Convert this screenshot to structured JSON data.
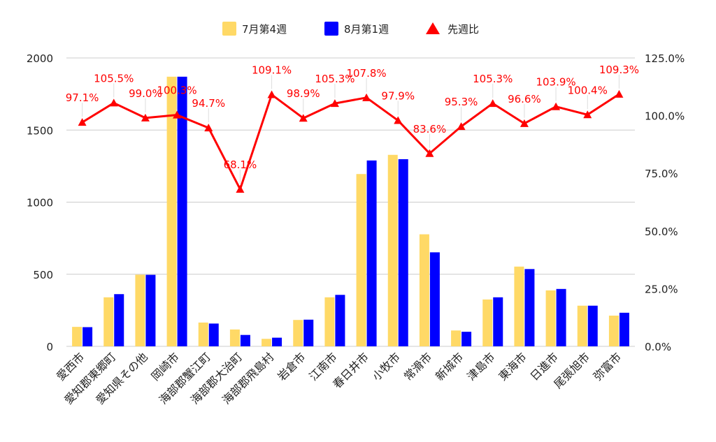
{
  "chart_data": {
    "type": "bar",
    "title": "",
    "categories": [
      "愛西市",
      "愛知郡東郷町",
      "愛知県その他",
      "岡崎市",
      "海部郡蟹江町",
      "海部郡大治町",
      "海部郡飛島村",
      "岩倉市",
      "江南市",
      "春日井市",
      "小牧市",
      "常滑市",
      "新城市",
      "津島市",
      "東海市",
      "日進市",
      "尾張旭市",
      "弥富市"
    ],
    "series": [
      {
        "name": "7月第4週",
        "type": "bar",
        "axis": "left",
        "color": "#ffd966",
        "values": [
          135,
          340,
          497,
          1870,
          165,
          117,
          52,
          183,
          340,
          1195,
          1328,
          777,
          110,
          325,
          553,
          388,
          282,
          213
        ]
      },
      {
        "name": "8月第1週",
        "type": "bar",
        "axis": "left",
        "color": "#0000ff",
        "values": [
          133,
          362,
          496,
          1870,
          158,
          79,
          60,
          185,
          357,
          1289,
          1298,
          652,
          101,
          340,
          536,
          398,
          282,
          233
        ]
      },
      {
        "name": "先週比",
        "type": "line",
        "axis": "right",
        "color": "#ff0000",
        "marker": "triangle",
        "values": [
          97.1,
          105.5,
          99.0,
          100.3,
          94.7,
          68.1,
          109.1,
          98.9,
          105.3,
          107.8,
          97.9,
          83.6,
          95.3,
          105.3,
          96.6,
          103.9,
          100.4,
          109.3
        ],
        "labels": [
          "97.1%",
          "105.5%",
          "99.0%",
          "100.3%",
          "94.7%",
          "68.1%",
          "109.1%",
          "98.9%",
          "105.3%",
          "107.8%",
          "97.9%",
          "83.6%",
          "95.3%",
          "105.3%",
          "96.6%",
          "103.9%",
          "100.4%",
          "109.3%"
        ]
      }
    ],
    "y_left": {
      "ylim": [
        0,
        2000
      ],
      "ticks": [
        "0",
        "500",
        "1000",
        "1500",
        "2000"
      ],
      "tick_values": [
        0,
        500,
        1000,
        1500,
        2000
      ]
    },
    "y_right": {
      "ylim": [
        0,
        125
      ],
      "ticks": [
        "0.0%",
        "25.0%",
        "50.0%",
        "75.0%",
        "100.0%",
        "125.0%"
      ],
      "tick_values": [
        0,
        25,
        50,
        75,
        100,
        125
      ]
    },
    "xlabel": "",
    "ylabel": "",
    "grid": true,
    "legend": "top-center"
  }
}
